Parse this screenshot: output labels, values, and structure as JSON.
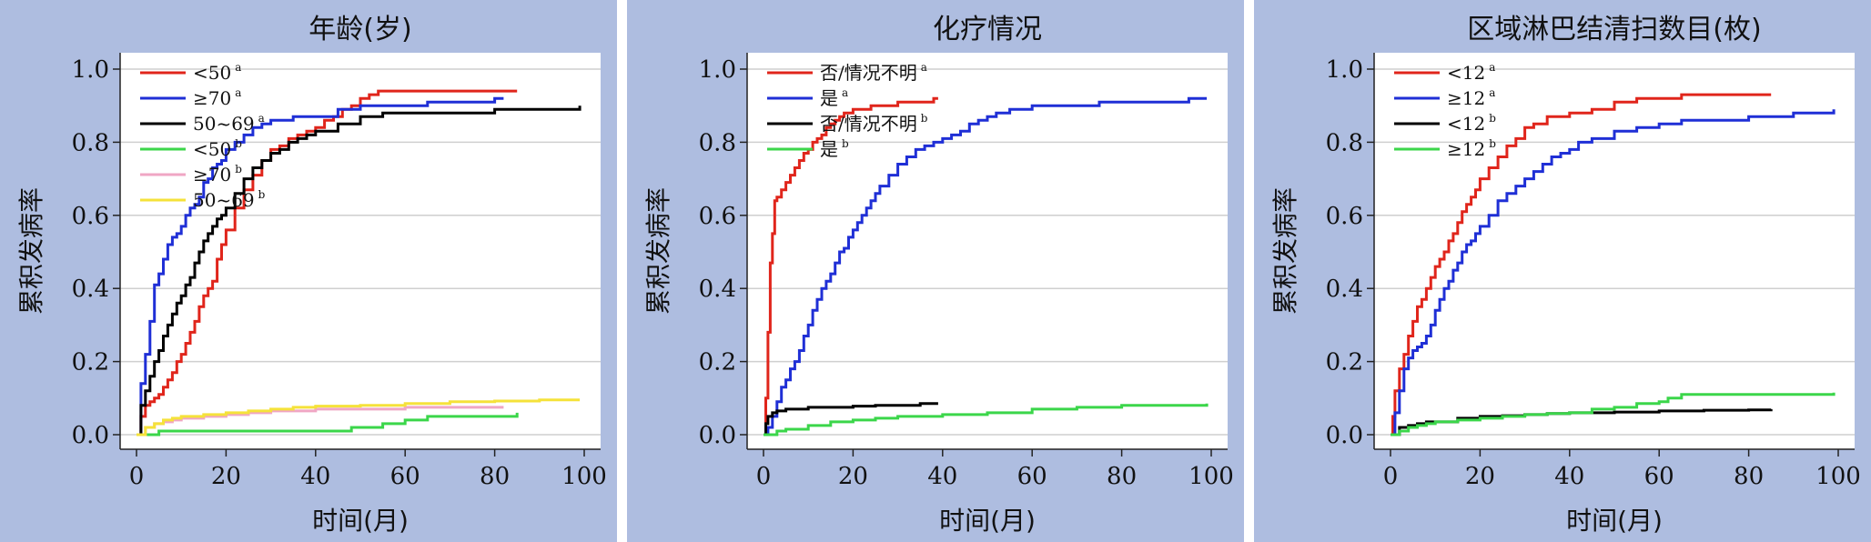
{
  "colors": {
    "background": "#aebde0",
    "plot": "#ffffff",
    "grid": "#cfcfcf",
    "red": "#e0251b",
    "blue": "#1f2fd6",
    "black": "#000000",
    "green": "#3bd64a",
    "pink": "#f0a6c4",
    "yellow": "#f5e23a"
  },
  "chart_data": [
    {
      "type": "line",
      "title": "年龄(岁)",
      "xlabel": "时间(月)",
      "ylabel": "累积发病率",
      "xlim": [
        0,
        100
      ],
      "ylim": [
        0,
        1.0
      ],
      "xticks": [
        "0",
        "20",
        "40",
        "60",
        "80",
        "100"
      ],
      "yticks": [
        "0.0",
        "0.2",
        "0.4",
        "0.6",
        "0.8",
        "1.0"
      ],
      "grid": true,
      "legend": "top-left",
      "series": [
        {
          "name": "<50",
          "sup": "a",
          "color": "#e0251b",
          "x": [
            0,
            1,
            2,
            3,
            4,
            5,
            6,
            7,
            8,
            9,
            10,
            11,
            12,
            13,
            14,
            15,
            16,
            17,
            18,
            19,
            20,
            22,
            24,
            26,
            28,
            30,
            32,
            34,
            36,
            38,
            40,
            42,
            44,
            46,
            48,
            50,
            52,
            54,
            56,
            58,
            60,
            65,
            70,
            75,
            80,
            85
          ],
          "y": [
            0,
            0.05,
            0.08,
            0.09,
            0.1,
            0.11,
            0.13,
            0.15,
            0.17,
            0.2,
            0.22,
            0.25,
            0.28,
            0.31,
            0.35,
            0.38,
            0.4,
            0.42,
            0.48,
            0.52,
            0.56,
            0.62,
            0.67,
            0.71,
            0.75,
            0.78,
            0.79,
            0.81,
            0.82,
            0.83,
            0.84,
            0.86,
            0.87,
            0.89,
            0.9,
            0.92,
            0.93,
            0.94,
            0.94,
            0.94,
            0.94,
            0.94,
            0.94,
            0.94,
            0.94,
            0.94
          ]
        },
        {
          "name": "≥70",
          "sup": "a",
          "color": "#1f2fd6",
          "x": [
            0,
            1,
            2,
            3,
            4,
            5,
            6,
            7,
            8,
            9,
            10,
            11,
            12,
            13,
            14,
            15,
            16,
            17,
            18,
            19,
            20,
            22,
            24,
            26,
            28,
            30,
            32,
            35,
            38,
            40,
            45,
            50,
            55,
            60,
            65,
            70,
            75,
            80,
            82
          ],
          "y": [
            0,
            0.14,
            0.22,
            0.31,
            0.41,
            0.44,
            0.48,
            0.52,
            0.54,
            0.55,
            0.57,
            0.6,
            0.62,
            0.63,
            0.65,
            0.69,
            0.7,
            0.73,
            0.74,
            0.75,
            0.78,
            0.8,
            0.82,
            0.84,
            0.85,
            0.86,
            0.86,
            0.87,
            0.87,
            0.87,
            0.89,
            0.9,
            0.9,
            0.9,
            0.91,
            0.91,
            0.91,
            0.92,
            0.92
          ]
        },
        {
          "name": "50~69",
          "sup": "a",
          "color": "#000000",
          "x": [
            0,
            1,
            2,
            3,
            4,
            5,
            6,
            7,
            8,
            9,
            10,
            11,
            12,
            13,
            14,
            15,
            16,
            17,
            18,
            19,
            20,
            22,
            24,
            26,
            28,
            30,
            32,
            34,
            36,
            38,
            40,
            45,
            50,
            55,
            60,
            70,
            80,
            90,
            99
          ],
          "y": [
            0,
            0.08,
            0.12,
            0.16,
            0.2,
            0.23,
            0.27,
            0.3,
            0.33,
            0.36,
            0.38,
            0.41,
            0.43,
            0.47,
            0.5,
            0.53,
            0.55,
            0.57,
            0.59,
            0.6,
            0.62,
            0.66,
            0.7,
            0.73,
            0.75,
            0.77,
            0.78,
            0.8,
            0.81,
            0.82,
            0.83,
            0.85,
            0.87,
            0.88,
            0.88,
            0.88,
            0.89,
            0.89,
            0.9
          ]
        },
        {
          "name": "<50",
          "sup": "b",
          "color": "#3bd64a",
          "x": [
            0,
            5,
            10,
            20,
            30,
            40,
            45,
            48,
            50,
            55,
            60,
            65,
            70,
            75,
            80,
            85
          ],
          "y": [
            0,
            0.01,
            0.01,
            0.01,
            0.01,
            0.01,
            0.01,
            0.02,
            0.02,
            0.03,
            0.04,
            0.05,
            0.05,
            0.05,
            0.05,
            0.06
          ]
        },
        {
          "name": "≥70",
          "sup": "b",
          "color": "#f0a6c4",
          "x": [
            0,
            2,
            4,
            6,
            8,
            10,
            15,
            20,
            25,
            30,
            40,
            50,
            60,
            70,
            80,
            82
          ],
          "y": [
            0,
            0.02,
            0.03,
            0.035,
            0.04,
            0.045,
            0.05,
            0.055,
            0.06,
            0.065,
            0.07,
            0.07,
            0.075,
            0.075,
            0.075,
            0.075
          ]
        },
        {
          "name": "50~69",
          "sup": "b",
          "color": "#f5e23a",
          "x": [
            0,
            2,
            4,
            6,
            8,
            10,
            15,
            20,
            25,
            30,
            35,
            40,
            50,
            60,
            70,
            80,
            90,
            99
          ],
          "y": [
            0,
            0.02,
            0.03,
            0.04,
            0.045,
            0.05,
            0.055,
            0.06,
            0.065,
            0.07,
            0.075,
            0.078,
            0.08,
            0.085,
            0.09,
            0.092,
            0.095,
            0.095
          ]
        }
      ]
    },
    {
      "type": "line",
      "title": "化疗情况",
      "xlabel": "时间(月)",
      "ylabel": "累积发病率",
      "xlim": [
        0,
        100
      ],
      "ylim": [
        0,
        1.0
      ],
      "xticks": [
        "0",
        "20",
        "40",
        "60",
        "80",
        "100"
      ],
      "yticks": [
        "0.0",
        "0.2",
        "0.4",
        "0.6",
        "0.8",
        "1.0"
      ],
      "grid": true,
      "legend": "top-left",
      "series": [
        {
          "name": "否/情况不明",
          "sup": "a",
          "color": "#e0251b",
          "x": [
            0,
            0.5,
            1,
            1.5,
            2,
            2.5,
            3,
            4,
            5,
            6,
            7,
            8,
            9,
            10,
            11,
            12,
            13,
            14,
            15,
            16,
            17,
            18,
            20,
            22,
            24,
            26,
            28,
            30,
            32,
            34,
            36,
            38,
            39
          ],
          "y": [
            0,
            0.1,
            0.28,
            0.47,
            0.55,
            0.64,
            0.65,
            0.67,
            0.69,
            0.71,
            0.73,
            0.75,
            0.77,
            0.78,
            0.8,
            0.81,
            0.82,
            0.84,
            0.85,
            0.86,
            0.87,
            0.88,
            0.89,
            0.89,
            0.9,
            0.9,
            0.9,
            0.91,
            0.91,
            0.91,
            0.91,
            0.92,
            0.92
          ]
        },
        {
          "name": "是",
          "sup": "a",
          "color": "#1f2fd6",
          "x": [
            0,
            1,
            2,
            3,
            4,
            5,
            6,
            7,
            8,
            9,
            10,
            11,
            12,
            13,
            14,
            15,
            16,
            17,
            18,
            19,
            20,
            21,
            22,
            23,
            24,
            25,
            26,
            28,
            30,
            32,
            34,
            36,
            38,
            40,
            42,
            44,
            46,
            48,
            50,
            52,
            55,
            60,
            65,
            70,
            75,
            80,
            85,
            90,
            95,
            99
          ],
          "y": [
            0,
            0.02,
            0.05,
            0.09,
            0.13,
            0.15,
            0.18,
            0.2,
            0.23,
            0.27,
            0.3,
            0.34,
            0.37,
            0.4,
            0.42,
            0.44,
            0.47,
            0.5,
            0.51,
            0.54,
            0.56,
            0.58,
            0.6,
            0.62,
            0.64,
            0.66,
            0.68,
            0.71,
            0.74,
            0.76,
            0.78,
            0.79,
            0.8,
            0.81,
            0.82,
            0.83,
            0.85,
            0.86,
            0.87,
            0.88,
            0.89,
            0.9,
            0.9,
            0.9,
            0.91,
            0.91,
            0.91,
            0.91,
            0.92,
            0.92
          ]
        },
        {
          "name": "否/情况不明",
          "sup": "b",
          "color": "#000000",
          "x": [
            0,
            0.5,
            1,
            2,
            3,
            5,
            8,
            10,
            15,
            20,
            25,
            30,
            35,
            39
          ],
          "y": [
            0,
            0.03,
            0.05,
            0.06,
            0.065,
            0.07,
            0.07,
            0.075,
            0.075,
            0.078,
            0.08,
            0.08,
            0.085,
            0.085
          ]
        },
        {
          "name": "是",
          "sup": "b",
          "color": "#3bd64a",
          "x": [
            0,
            3,
            5,
            10,
            15,
            20,
            25,
            30,
            40,
            50,
            60,
            70,
            80,
            90,
            99
          ],
          "y": [
            0,
            0.01,
            0.015,
            0.025,
            0.035,
            0.04,
            0.045,
            0.05,
            0.055,
            0.06,
            0.07,
            0.075,
            0.08,
            0.08,
            0.085
          ]
        }
      ]
    },
    {
      "type": "line",
      "title": "区域淋巴结清扫数目(枚)",
      "xlabel": "时间(月)",
      "ylabel": "累积发病率",
      "xlim": [
        0,
        100
      ],
      "ylim": [
        0,
        1.0
      ],
      "xticks": [
        "0",
        "20",
        "40",
        "60",
        "80",
        "100"
      ],
      "yticks": [
        "0.0",
        "0.2",
        "0.4",
        "0.6",
        "0.8",
        "1.0"
      ],
      "grid": true,
      "legend": "top-left",
      "series": [
        {
          "name": "<12",
          "sup": "a",
          "color": "#e0251b",
          "x": [
            0,
            0.5,
            1,
            2,
            3,
            4,
            5,
            6,
            7,
            8,
            9,
            10,
            11,
            12,
            13,
            14,
            15,
            16,
            17,
            18,
            19,
            20,
            22,
            24,
            26,
            28,
            30,
            32,
            35,
            38,
            40,
            45,
            50,
            55,
            60,
            65,
            70,
            75,
            80,
            85
          ],
          "y": [
            0,
            0.05,
            0.12,
            0.18,
            0.22,
            0.27,
            0.31,
            0.35,
            0.37,
            0.4,
            0.43,
            0.46,
            0.48,
            0.5,
            0.53,
            0.55,
            0.58,
            0.61,
            0.63,
            0.65,
            0.67,
            0.7,
            0.73,
            0.76,
            0.79,
            0.81,
            0.84,
            0.85,
            0.87,
            0.87,
            0.88,
            0.89,
            0.91,
            0.92,
            0.92,
            0.93,
            0.93,
            0.93,
            0.93,
            0.93
          ]
        },
        {
          "name": "≥12",
          "sup": "a",
          "color": "#1f2fd6",
          "x": [
            0,
            1,
            2,
            3,
            4,
            5,
            6,
            7,
            8,
            9,
            10,
            11,
            12,
            13,
            14,
            15,
            16,
            17,
            18,
            19,
            20,
            22,
            24,
            26,
            28,
            30,
            32,
            34,
            36,
            38,
            40,
            42,
            45,
            50,
            55,
            60,
            65,
            70,
            75,
            80,
            85,
            90,
            95,
            99
          ],
          "y": [
            0,
            0.06,
            0.12,
            0.18,
            0.21,
            0.23,
            0.24,
            0.25,
            0.27,
            0.3,
            0.34,
            0.37,
            0.4,
            0.42,
            0.45,
            0.47,
            0.5,
            0.52,
            0.53,
            0.55,
            0.57,
            0.6,
            0.64,
            0.66,
            0.68,
            0.7,
            0.72,
            0.74,
            0.76,
            0.77,
            0.78,
            0.8,
            0.81,
            0.83,
            0.84,
            0.85,
            0.86,
            0.86,
            0.86,
            0.87,
            0.87,
            0.88,
            0.88,
            0.89
          ]
        },
        {
          "name": "<12",
          "sup": "b",
          "color": "#000000",
          "x": [
            0,
            2,
            4,
            6,
            8,
            10,
            15,
            20,
            25,
            30,
            35,
            40,
            50,
            60,
            70,
            80,
            85
          ],
          "y": [
            0,
            0.02,
            0.025,
            0.03,
            0.035,
            0.035,
            0.045,
            0.05,
            0.052,
            0.055,
            0.058,
            0.06,
            0.062,
            0.065,
            0.067,
            0.068,
            0.07
          ]
        },
        {
          "name": "≥12",
          "sup": "b",
          "color": "#3bd64a",
          "x": [
            0,
            2,
            4,
            6,
            8,
            10,
            15,
            20,
            25,
            30,
            35,
            40,
            45,
            50,
            55,
            60,
            62,
            65,
            70,
            80,
            90,
            99
          ],
          "y": [
            0,
            0.01,
            0.02,
            0.025,
            0.03,
            0.035,
            0.04,
            0.045,
            0.05,
            0.055,
            0.058,
            0.06,
            0.07,
            0.075,
            0.085,
            0.09,
            0.1,
            0.11,
            0.11,
            0.11,
            0.11,
            0.115
          ]
        }
      ]
    }
  ]
}
